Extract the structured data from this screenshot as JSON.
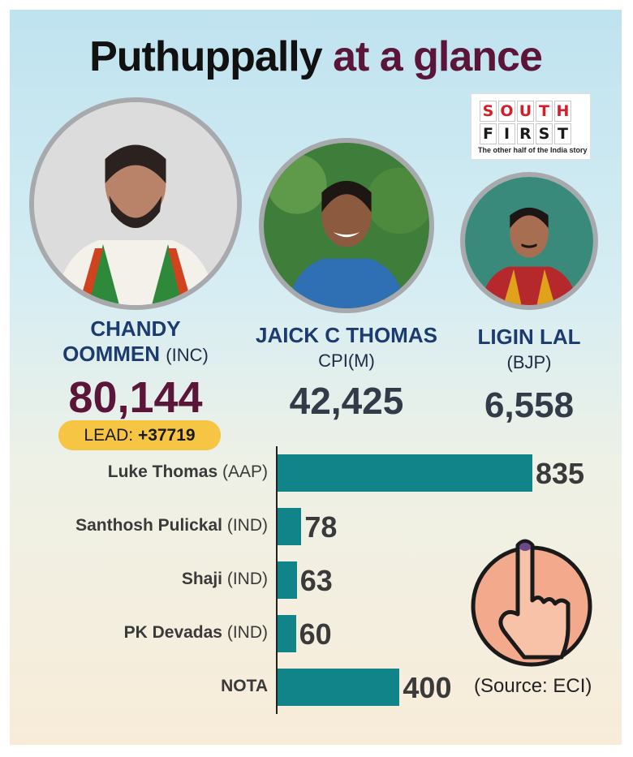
{
  "title": {
    "part1": "Puthuppally",
    "part2": "at a glance"
  },
  "logo": {
    "row1": [
      "S",
      "O",
      "U",
      "T",
      "H"
    ],
    "row2": [
      "F",
      "I",
      "R",
      "S",
      "T"
    ],
    "tagline": "The other half of the India story"
  },
  "colors": {
    "bar": "#11848a",
    "title_accent": "#5a1538",
    "name": "#1c3b6e",
    "lead_bg": "#f6c544"
  },
  "candidates": [
    {
      "name_line1": "CHANDY",
      "name_line2": "OOMMEN",
      "party": "(INC)",
      "votes": "80,144",
      "icon": "candidate-photo"
    },
    {
      "name": "JAICK C THOMAS",
      "party": "CPI(M)",
      "votes": "42,425",
      "icon": "candidate-photo"
    },
    {
      "name": "LIGIN LAL",
      "party": "(BJP)",
      "votes": "6,558",
      "icon": "candidate-photo"
    }
  ],
  "lead": {
    "label": "LEAD:",
    "value": "+37719"
  },
  "chart_data": {
    "type": "bar",
    "orientation": "horizontal",
    "categories": [
      "Luke Thomas (AAP)",
      "Santhosh Pulickal (IND)",
      "Shaji (IND)",
      "PK Devadas (IND)",
      "NOTA"
    ],
    "values": [
      835,
      78,
      63,
      60,
      400
    ],
    "value_labels": [
      "835",
      "78",
      "63",
      "60",
      "400"
    ],
    "label_names": [
      "Luke Thomas",
      "Santhosh Pulickal",
      "Shaji",
      "PK Devadas",
      "NOTA"
    ],
    "label_parties": [
      "(AAP)",
      "(IND)",
      "(IND)",
      "(IND)",
      ""
    ]
  },
  "source": "(Source: ECI)",
  "decor_icon": "voting-finger-icon"
}
